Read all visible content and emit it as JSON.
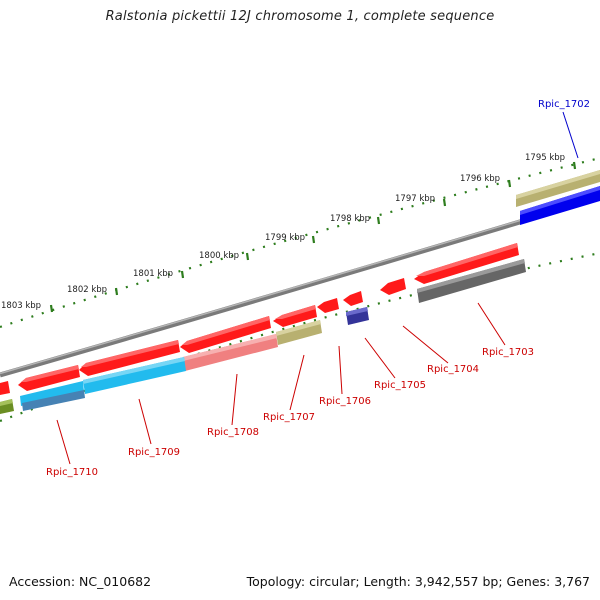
{
  "title": "Ralstonia pickettii 12J chromosome 1, complete sequence",
  "footer": {
    "accession": "Accession: NC_010682",
    "summary": "Topology: circular; Length: 3,942,557 bp; Genes: 3,767"
  },
  "ticks": [
    {
      "label": "1795 kbp"
    },
    {
      "label": "1796 kbp"
    },
    {
      "label": "1797 kbp"
    },
    {
      "label": "1798 kbp"
    },
    {
      "label": "1799 kbp"
    },
    {
      "label": "1800 kbp"
    },
    {
      "label": "1801 kbp"
    },
    {
      "label": "1802 kbp"
    },
    {
      "label": "1803 kbp"
    }
  ],
  "gene_labels": [
    {
      "name": "Rpic_1702",
      "color": "#0000cc"
    },
    {
      "name": "Rpic_1703",
      "color": "#cc0000"
    },
    {
      "name": "Rpic_1704",
      "color": "#cc0000"
    },
    {
      "name": "Rpic_1705",
      "color": "#cc0000"
    },
    {
      "name": "Rpic_1706",
      "color": "#cc0000"
    },
    {
      "name": "Rpic_1707",
      "color": "#cc0000"
    },
    {
      "name": "Rpic_1708",
      "color": "#cc0000"
    },
    {
      "name": "Rpic_1709",
      "color": "#cc0000"
    },
    {
      "name": "Rpic_1710",
      "color": "#cc0000"
    }
  ],
  "colors": {
    "backbone": "#808080",
    "tick_dots": "#2e7d1e",
    "gene_red": "#ff1a1a",
    "gene_pink": "#f08080",
    "gene_cyan": "#22bbee",
    "gene_steel": "#4682b4",
    "gene_olive": "#b8b070",
    "gene_blue": "#0000ee",
    "gene_gray": "#666666",
    "gene_navy": "#333399",
    "gene_green": "#6b8e23"
  }
}
